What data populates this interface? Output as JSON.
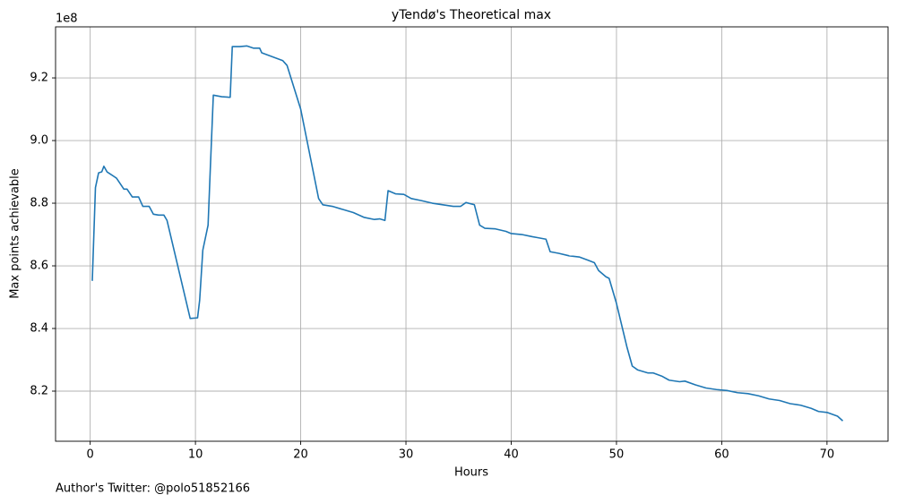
{
  "chart_data": {
    "type": "line",
    "title": "yTendø's Theoretical max",
    "x_label": "Hours",
    "y_label": "Max points achievable",
    "y_offset_label": "1e8",
    "annotation": "Author's Twitter: @polo51852166",
    "grid": true,
    "xlim": [
      -3.29,
      75.8
    ],
    "ylim": [
      8.04,
      9.363
    ],
    "xticks": [
      0,
      10,
      20,
      30,
      40,
      50,
      60,
      70
    ],
    "yticks": [
      8.2,
      8.4,
      8.6,
      8.8,
      {
        "value": 9.0,
        "label": "9.0"
      },
      9.2
    ],
    "series": [
      {
        "color": "#1f77b4",
        "x": [
          0.2,
          0.5,
          0.8,
          1.1,
          1.3,
          1.6,
          2.5,
          3.2,
          3.5,
          4.0,
          4.6,
          5.0,
          5.6,
          6.0,
          6.5,
          7.0,
          7.3,
          9.5,
          10.2,
          10.4,
          10.7,
          11.2,
          11.4,
          11.7,
          12.5,
          13.3,
          13.5,
          14.2,
          14.9,
          15.5,
          16.1,
          16.3,
          17.5,
          18.3,
          18.7,
          20,
          21.7,
          22.1,
          23,
          24,
          25,
          26,
          27,
          27.5,
          28,
          28.3,
          29,
          29.8,
          30.5,
          31.5,
          32.5,
          33.5,
          34.5,
          35.2,
          35.7,
          36.5,
          37,
          37.5,
          38.5,
          39.5,
          40,
          41,
          42,
          42.5,
          43.3,
          43.7,
          44.5,
          45.5,
          46.5,
          47.3,
          47.9,
          48.3,
          49,
          49.3,
          50,
          51,
          51.5,
          52,
          53,
          53.5,
          54.3,
          55,
          56,
          56.5,
          57.5,
          58.5,
          59.5,
          60.5,
          61.5,
          62.5,
          63.5,
          64.5,
          65.5,
          66.5,
          67.5,
          68.5,
          69.2,
          70,
          71,
          71.5
        ],
        "values": [
          8.552,
          8.85,
          8.897,
          8.9,
          8.918,
          8.9,
          8.88,
          8.845,
          8.845,
          8.82,
          8.82,
          8.79,
          8.79,
          8.765,
          8.762,
          8.762,
          8.745,
          8.432,
          8.434,
          8.49,
          8.65,
          8.73,
          8.9,
          9.145,
          9.14,
          9.138,
          9.3,
          9.3,
          9.302,
          9.295,
          9.295,
          9.28,
          9.265,
          9.255,
          9.24,
          9.1,
          8.815,
          8.795,
          8.79,
          8.78,
          8.77,
          8.755,
          8.748,
          8.75,
          8.745,
          8.84,
          8.83,
          8.828,
          8.815,
          8.808,
          8.8,
          8.795,
          8.79,
          8.79,
          8.802,
          8.795,
          8.73,
          8.72,
          8.718,
          8.71,
          8.703,
          8.7,
          8.693,
          8.69,
          8.685,
          8.645,
          8.64,
          8.632,
          8.628,
          8.618,
          8.61,
          8.585,
          8.565,
          8.56,
          8.48,
          8.34,
          8.28,
          8.268,
          8.258,
          8.258,
          8.248,
          8.235,
          8.23,
          8.232,
          8.22,
          8.21,
          8.205,
          8.202,
          8.195,
          8.192,
          8.185,
          8.175,
          8.17,
          8.16,
          8.155,
          8.145,
          8.135,
          8.132,
          8.12,
          8.105
        ]
      }
    ]
  }
}
